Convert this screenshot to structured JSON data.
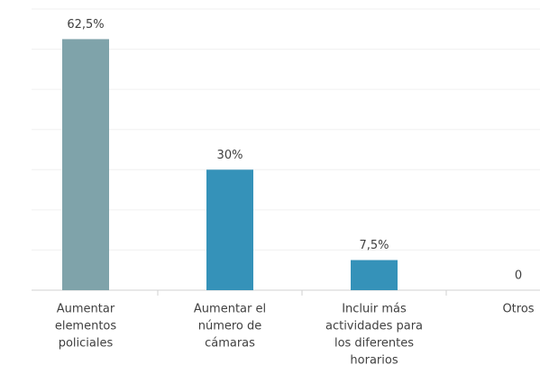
{
  "chart_data": {
    "type": "bar",
    "categories": [
      [
        "Aumentar",
        "elementos",
        "policiales"
      ],
      [
        "Aumentar el",
        "número de",
        "cámaras"
      ],
      [
        "Incluir más",
        "actividades  para",
        "los diferentes",
        "horarios"
      ],
      [
        "Otros"
      ]
    ],
    "values": [
      62.5,
      30,
      7.5,
      0
    ],
    "value_labels": [
      "62,5%",
      "30%",
      "7,5%",
      "0"
    ],
    "colors": [
      "#7fa3aa",
      "#3592b9",
      "#3592b9",
      "#3592b9"
    ],
    "ylim": [
      0,
      70
    ],
    "yticks": [
      0,
      10,
      20,
      30,
      40,
      50,
      60,
      70
    ],
    "grid": true
  }
}
